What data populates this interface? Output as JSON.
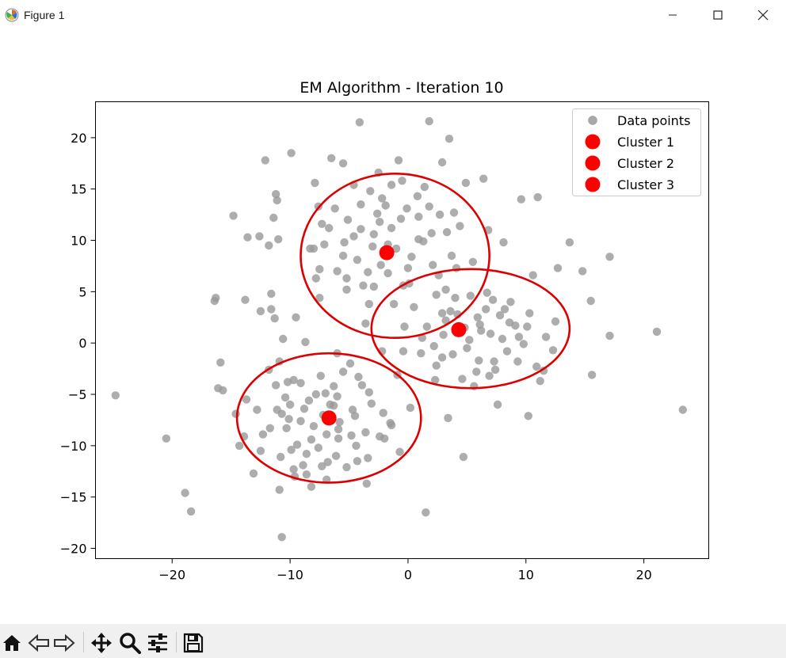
{
  "window": {
    "title": "Figure 1"
  },
  "icons": {
    "app": "matplotlib-figure-icon",
    "minimize": "minimize-icon",
    "maximize": "maximize-icon",
    "close": "close-icon"
  },
  "toolbar": {
    "buttons": [
      "home-icon",
      "back-arrow-icon",
      "forward-arrow-icon",
      "pan-icon",
      "zoom-icon",
      "configure-subplots-icon",
      "save-icon"
    ]
  },
  "colors": {
    "points": "#999999",
    "centroids": "#ff0000",
    "ellipses": "#dd0000"
  },
  "chart_data": {
    "type": "scatter",
    "title": "EM Algorithm - Iteration 10",
    "xlabel": "",
    "ylabel": "",
    "xlim": [
      -26.5,
      25.5
    ],
    "ylim": [
      -21,
      23.5
    ],
    "xticks": [
      -20,
      -10,
      0,
      10,
      20
    ],
    "yticks": [
      -20,
      -15,
      -10,
      -5,
      0,
      5,
      10,
      15,
      20
    ],
    "xtick_labels": [
      "−20",
      "−10",
      "0",
      "10",
      "20"
    ],
    "ytick_labels": [
      "−20",
      "−15",
      "−10",
      "−5",
      "0",
      "5",
      "10",
      "15",
      "20"
    ],
    "grid": false,
    "legend_position": "top-right",
    "legend": [
      "Data points",
      "Cluster 1",
      "Cluster 2",
      "Cluster 3"
    ],
    "centroids": [
      {
        "name": "Cluster 1",
        "x": -1.8,
        "y": 8.8
      },
      {
        "name": "Cluster 2",
        "x": 4.3,
        "y": 1.3
      },
      {
        "name": "Cluster 3",
        "x": -6.7,
        "y": -7.3
      }
    ],
    "ellipses": [
      {
        "cx": -1.1,
        "cy": 8.5,
        "rx": 8.0,
        "ry": 8.0
      },
      {
        "cx": 5.3,
        "cy": 1.4,
        "rx": 8.4,
        "ry": 5.8
      },
      {
        "cx": -6.7,
        "cy": -7.3,
        "rx": 7.8,
        "ry": 6.3
      }
    ],
    "points": [
      [
        -24.8,
        -5.1
      ],
      [
        -20.5,
        -9.3
      ],
      [
        -18.9,
        -14.6
      ],
      [
        -18.4,
        -16.4
      ],
      [
        -16.3,
        4.4
      ],
      [
        -16.4,
        4.1
      ],
      [
        -15.9,
        -1.9
      ],
      [
        -16.1,
        -4.4
      ],
      [
        -15.7,
        -4.6
      ],
      [
        -14.8,
        12.4
      ],
      [
        -14.6,
        -6.9
      ],
      [
        -14.3,
        -10.0
      ],
      [
        -13.9,
        -9.1
      ],
      [
        -13.8,
        4.2
      ],
      [
        -13.6,
        10.3
      ],
      [
        -13.7,
        -5.5
      ],
      [
        -13.1,
        -12.7
      ],
      [
        -12.8,
        -6.5
      ],
      [
        -12.6,
        10.4
      ],
      [
        -12.5,
        3.1
      ],
      [
        -12.3,
        -8.9
      ],
      [
        -12.1,
        17.8
      ],
      [
        -11.8,
        9.5
      ],
      [
        -11.6,
        4.8
      ],
      [
        -11.8,
        -2.6
      ],
      [
        -11.6,
        3.3
      ],
      [
        -11.3,
        2.4
      ],
      [
        -11.2,
        -4.1
      ],
      [
        -11.4,
        12.2
      ],
      [
        -11.2,
        14.5
      ],
      [
        -11.1,
        13.9
      ],
      [
        -11.0,
        10.1
      ],
      [
        -10.9,
        -1.8
      ],
      [
        -10.6,
        0.4
      ],
      [
        -10.4,
        -5.3
      ],
      [
        -10.7,
        -6.9
      ],
      [
        -10.9,
        -14.3
      ],
      [
        -10.7,
        -18.9
      ],
      [
        -10.2,
        -3.8
      ],
      [
        -10.1,
        -7.4
      ],
      [
        -9.9,
        18.5
      ],
      [
        -9.9,
        -10.4
      ],
      [
        -9.7,
        -12.3
      ],
      [
        -9.5,
        2.5
      ],
      [
        -8.7,
        0.1
      ],
      [
        -9.1,
        -3.9
      ],
      [
        -8.8,
        -6.4
      ],
      [
        -8.6,
        -10.8
      ],
      [
        -8.2,
        -14.0
      ],
      [
        -7.9,
        15.6
      ],
      [
        -8.0,
        9.2
      ],
      [
        -7.8,
        6.3
      ],
      [
        -7.5,
        7.2
      ],
      [
        -7.5,
        4.4
      ],
      [
        -7.3,
        11.6
      ],
      [
        -7.1,
        9.6
      ],
      [
        -7.4,
        -3.2
      ],
      [
        -7.0,
        -4.9
      ],
      [
        -6.9,
        -8.9
      ],
      [
        -6.8,
        -11.6
      ],
      [
        -6.5,
        18.0
      ],
      [
        -6.2,
        13.1
      ],
      [
        -6.0,
        -1.0
      ],
      [
        -6.3,
        -6.1
      ],
      [
        -5.9,
        -9.3
      ],
      [
        -5.5,
        17.5
      ],
      [
        -5.4,
        9.8
      ],
      [
        -5.2,
        6.3
      ],
      [
        -4.6,
        15.4
      ],
      [
        -4.9,
        -2.0
      ],
      [
        -4.5,
        -7.1
      ],
      [
        -4.3,
        -11.5
      ],
      [
        -4.1,
        21.5
      ],
      [
        -4.0,
        11.1
      ],
      [
        -3.8,
        5.6
      ],
      [
        -3.6,
        1.9
      ],
      [
        -3.3,
        -4.8
      ],
      [
        -3.5,
        -13.7
      ],
      [
        -2.6,
        12.6
      ],
      [
        -2.5,
        16.6
      ],
      [
        -2.3,
        7.6
      ],
      [
        -2.2,
        -0.8
      ],
      [
        -2.0,
        -9.3
      ],
      [
        -1.7,
        6.8
      ],
      [
        -1.4,
        15.4
      ],
      [
        -1.2,
        3.8
      ],
      [
        -1.5,
        -7.8
      ],
      [
        -0.8,
        17.8
      ],
      [
        -0.6,
        12.1
      ],
      [
        -0.9,
        -3.1
      ],
      [
        -0.7,
        -10.6
      ],
      [
        -0.3,
        1.6
      ],
      [
        0.1,
        5.8
      ],
      [
        0.2,
        -6.3
      ],
      [
        0.8,
        14.3
      ],
      [
        0.9,
        10.1
      ],
      [
        1.1,
        -1.0
      ],
      [
        1.5,
        -16.5
      ],
      [
        1.8,
        21.6
      ],
      [
        2.1,
        7.6
      ],
      [
        2.3,
        -3.6
      ],
      [
        2.7,
        12.5
      ],
      [
        2.9,
        17.6
      ],
      [
        3.2,
        5.2
      ],
      [
        3.4,
        -7.3
      ],
      [
        3.5,
        19.9
      ],
      [
        3.9,
        12.7
      ],
      [
        4.2,
        2.8
      ],
      [
        4.7,
        -11.1
      ],
      [
        4.9,
        15.6
      ],
      [
        5.5,
        7.9
      ],
      [
        5.8,
        -2.8
      ],
      [
        6.1,
        1.8
      ],
      [
        6.4,
        16.0
      ],
      [
        6.8,
        11.0
      ],
      [
        7.2,
        4.2
      ],
      [
        7.6,
        -6.0
      ],
      [
        8.1,
        9.8
      ],
      [
        8.6,
        2.0
      ],
      [
        9.3,
        -1.8
      ],
      [
        9.6,
        14.0
      ],
      [
        10.2,
        -7.1
      ],
      [
        10.6,
        6.6
      ],
      [
        11.0,
        14.2
      ],
      [
        11.5,
        -2.7
      ],
      [
        12.3,
        -0.7
      ],
      [
        12.7,
        7.3
      ],
      [
        13.7,
        9.8
      ],
      [
        14.8,
        7.0
      ],
      [
        15.5,
        4.1
      ],
      [
        15.6,
        -3.1
      ],
      [
        17.1,
        8.4
      ],
      [
        17.1,
        0.7
      ],
      [
        21.1,
        1.1
      ],
      [
        23.3,
        -6.5
      ],
      [
        -3.0,
        9.4
      ],
      [
        -1.4,
        11.2
      ],
      [
        0.3,
        8.4
      ],
      [
        1.3,
        9.9
      ],
      [
        -4.0,
        13.5
      ],
      [
        -2.9,
        5.5
      ],
      [
        -0.1,
        13.1
      ],
      [
        -5.5,
        8.5
      ],
      [
        -1.7,
        9.6
      ],
      [
        2.6,
        6.6
      ],
      [
        -4.3,
        8.1
      ],
      [
        0.9,
        12.3
      ],
      [
        -2.4,
        11.8
      ],
      [
        -3.2,
        14.8
      ],
      [
        2.0,
        10.7
      ],
      [
        -5.1,
        12.0
      ],
      [
        3.7,
        8.5
      ],
      [
        -0.4,
        5.6
      ],
      [
        -6.0,
        7.0
      ],
      [
        1.4,
        15.2
      ],
      [
        -3.4,
        6.9
      ],
      [
        -1.0,
        9.2
      ],
      [
        0.5,
        3.5
      ],
      [
        -7.6,
        13.3
      ],
      [
        4.4,
        11.4
      ],
      [
        -2.2,
        14.1
      ],
      [
        2.4,
        4.7
      ],
      [
        -4.6,
        10.4
      ],
      [
        -0.5,
        15.8
      ],
      [
        1.8,
        13.3
      ],
      [
        -8.3,
        9.2
      ],
      [
        -5.2,
        5.2
      ],
      [
        3.3,
        10.8
      ],
      [
        -1.9,
        13.4
      ],
      [
        -3.3,
        3.8
      ],
      [
        4.1,
        7.3
      ],
      [
        -6.7,
        11.2
      ],
      [
        0.0,
        7.3
      ],
      [
        2.9,
        2.9
      ],
      [
        -2.9,
        10.6
      ],
      [
        5.3,
        4.6
      ],
      [
        6.2,
        1.2
      ],
      [
        3.8,
        -1.1
      ],
      [
        8.0,
        0.4
      ],
      [
        6.6,
        3.3
      ],
      [
        5.0,
        -0.5
      ],
      [
        9.1,
        1.7
      ],
      [
        7.3,
        -1.8
      ],
      [
        2.4,
        -2.2
      ],
      [
        10.3,
        2.9
      ],
      [
        4.6,
        -3.5
      ],
      [
        8.4,
        -0.8
      ],
      [
        3.0,
        0.8
      ],
      [
        6.9,
        -3.2
      ],
      [
        11.7,
        0.6
      ],
      [
        1.6,
        1.6
      ],
      [
        5.9,
        2.5
      ],
      [
        9.8,
        -0.1
      ],
      [
        4.0,
        4.4
      ],
      [
        7.8,
        2.7
      ],
      [
        12.5,
        2.1
      ],
      [
        2.2,
        -0.3
      ],
      [
        6.0,
        -1.7
      ],
      [
        10.9,
        -2.3
      ],
      [
        3.6,
        3.1
      ],
      [
        8.7,
        4.0
      ],
      [
        1.2,
        0.5
      ],
      [
        5.6,
        -4.2
      ],
      [
        7.0,
        0.9
      ],
      [
        11.2,
        -3.7
      ],
      [
        4.8,
        1.5
      ],
      [
        9.4,
        0.6
      ],
      [
        2.9,
        -1.4
      ],
      [
        6.7,
        4.9
      ],
      [
        10.1,
        1.6
      ],
      [
        3.2,
        2.2
      ],
      [
        7.4,
        -2.6
      ],
      [
        -0.4,
        -0.8
      ],
      [
        8.2,
        3.3
      ],
      [
        5.2,
        0.3
      ],
      [
        -9.1,
        -7.6
      ],
      [
        -5.9,
        -8.4
      ],
      [
        -8.4,
        -5.6
      ],
      [
        -4.7,
        -6.5
      ],
      [
        -7.6,
        -10.2
      ],
      [
        -10.3,
        -8.3
      ],
      [
        -3.6,
        -8.7
      ],
      [
        -6.3,
        -4.2
      ],
      [
        -8.9,
        -11.9
      ],
      [
        -5.2,
        -12.1
      ],
      [
        -11.1,
        -6.5
      ],
      [
        -3.1,
        -5.9
      ],
      [
        -7.2,
        -7.0
      ],
      [
        -9.7,
        -3.6
      ],
      [
        -4.4,
        -10.0
      ],
      [
        -6.9,
        -13.3
      ],
      [
        -12.5,
        -10.5
      ],
      [
        -2.4,
        -9.1
      ],
      [
        -8.0,
        -8.1
      ],
      [
        -5.5,
        -2.8
      ],
      [
        -10.8,
        -11.1
      ],
      [
        -3.9,
        -4.1
      ],
      [
        -7.8,
        -5.0
      ],
      [
        -6.1,
        -11.0
      ],
      [
        -9.4,
        -9.9
      ],
      [
        -2.1,
        -6.8
      ],
      [
        -4.8,
        -9.0
      ],
      [
        -11.7,
        -8.3
      ],
      [
        -6.6,
        -6.0
      ],
      [
        -8.6,
        -12.8
      ],
      [
        -3.4,
        -11.2
      ],
      [
        -5.8,
        -7.7
      ],
      [
        -10.0,
        -6.0
      ],
      [
        -7.3,
        -12.0
      ],
      [
        -1.4,
        -8.0
      ],
      [
        -4.2,
        -3.3
      ],
      [
        -9.6,
        -13.0
      ],
      [
        -6.0,
        -5.2
      ],
      [
        -8.2,
        -9.4
      ]
    ]
  }
}
